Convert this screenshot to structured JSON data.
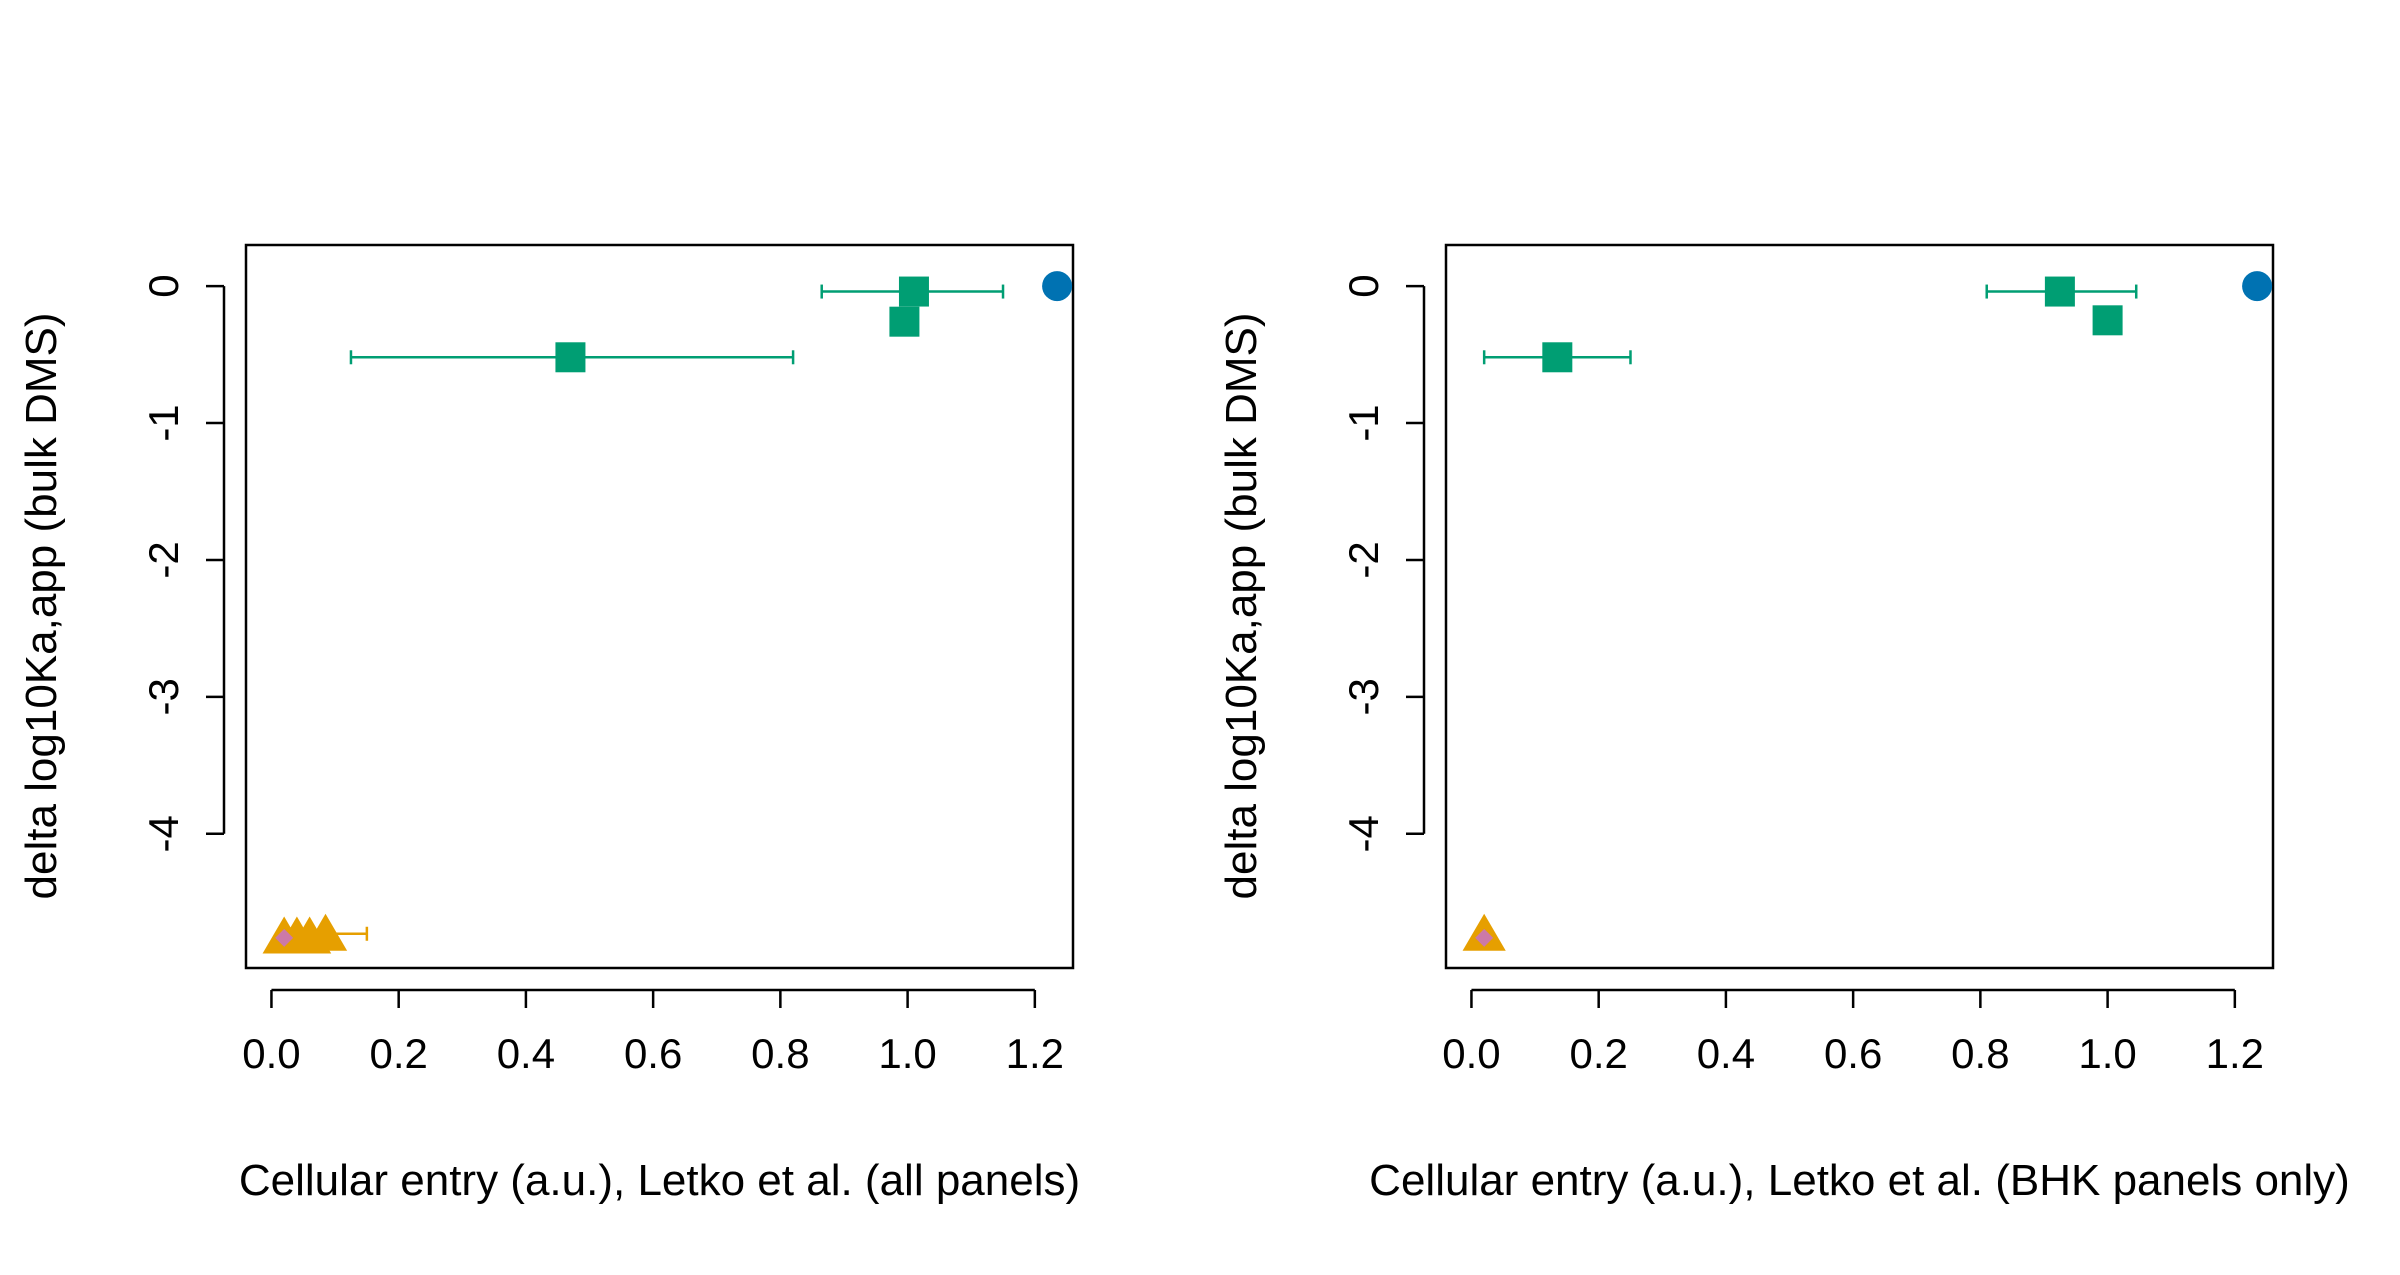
{
  "colors": {
    "circle": "#0072B2",
    "square": "#009E73",
    "triangle": "#E69F00",
    "diamond": "#CC79A7"
  },
  "chart_data": [
    {
      "type": "scatter",
      "title": "",
      "xlabel": "Cellular entry (a.u.), Letko et al. (all panels)",
      "ylabel": "delta log10Ka,app (bulk DMS)",
      "xlim": [
        -0.04,
        1.26
      ],
      "ylim": [
        -4.98,
        0.3
      ],
      "xticks": [
        "0.0",
        "0.2",
        "0.4",
        "0.6",
        "0.8",
        "1.0",
        "1.2"
      ],
      "yticks": [
        "0",
        "-1",
        "-2",
        "-3",
        "-4"
      ],
      "grid": false,
      "points": [
        {
          "shape": "circle",
          "color": "circle",
          "x": 1.235,
          "y": 0.0
        },
        {
          "shape": "square",
          "color": "square",
          "x": 1.01,
          "y": -0.04,
          "xerr": [
            0.865,
            1.15
          ]
        },
        {
          "shape": "square",
          "color": "square",
          "x": 0.995,
          "y": -0.26
        },
        {
          "shape": "square",
          "color": "square",
          "x": 0.47,
          "y": -0.52,
          "xerr": [
            0.125,
            0.82
          ]
        },
        {
          "shape": "triangle",
          "color": "triangle",
          "x": 0.085,
          "y": -4.73,
          "xerr": [
            0.085,
            0.15
          ]
        },
        {
          "shape": "triangle",
          "color": "triangle",
          "x": 0.06,
          "y": -4.75
        },
        {
          "shape": "triangle",
          "color": "triangle",
          "x": 0.04,
          "y": -4.75
        },
        {
          "shape": "triangle",
          "color": "triangle",
          "x": 0.02,
          "y": -4.75
        },
        {
          "shape": "diamond",
          "color": "diamond",
          "x": 0.02,
          "y": -4.76
        }
      ]
    },
    {
      "type": "scatter",
      "title": "",
      "xlabel": "Cellular entry (a.u.), Letko et al. (BHK panels only)",
      "ylabel": "delta log10Ka,app (bulk DMS)",
      "xlim": [
        -0.04,
        1.26
      ],
      "ylim": [
        -4.98,
        0.3
      ],
      "xticks": [
        "0.0",
        "0.2",
        "0.4",
        "0.6",
        "0.8",
        "1.0",
        "1.2"
      ],
      "yticks": [
        "0",
        "-1",
        "-2",
        "-3",
        "-4"
      ],
      "grid": false,
      "points": [
        {
          "shape": "circle",
          "color": "circle",
          "x": 1.235,
          "y": 0.0
        },
        {
          "shape": "square",
          "color": "square",
          "x": 0.925,
          "y": -0.04,
          "xerr": [
            0.81,
            1.045
          ]
        },
        {
          "shape": "square",
          "color": "square",
          "x": 1.0,
          "y": -0.25
        },
        {
          "shape": "square",
          "color": "square",
          "x": 0.135,
          "y": -0.52,
          "xerr": [
            0.02,
            0.25
          ]
        },
        {
          "shape": "triangle",
          "color": "triangle",
          "x": 0.02,
          "y": -4.73
        },
        {
          "shape": "diamond",
          "color": "diamond",
          "x": 0.02,
          "y": -4.76
        }
      ]
    }
  ]
}
